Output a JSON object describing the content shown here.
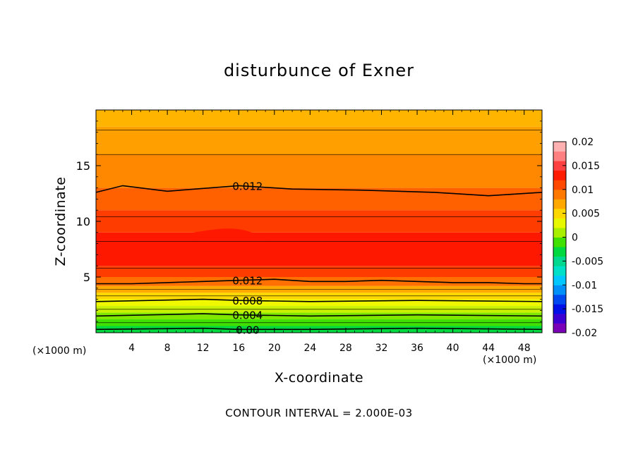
{
  "chart_data": {
    "type": "heatmap",
    "title": "disturbunce of Exner",
    "xlabel": "X-coordinate",
    "ylabel": "Z-coordinate",
    "x_unit": "(×1000 m)",
    "footer": "CONTOUR INTERVAL = 2.000E-03",
    "xlim": [
      0,
      50
    ],
    "ylim": [
      0,
      20
    ],
    "x_ticks": [
      4,
      8,
      12,
      16,
      20,
      24,
      28,
      32,
      36,
      40,
      44,
      48
    ],
    "y_ticks": [
      5,
      10,
      15
    ],
    "colorbar": {
      "min": -0.02,
      "max": 0.02,
      "ticks": [
        "0.02",
        "0.015",
        "0.01",
        "0.005",
        "0",
        "-0.005",
        "-0.01",
        "-0.015",
        "-0.02"
      ],
      "colors": [
        "#7a00b8",
        "#3c00d2",
        "#0010e6",
        "#0048f0",
        "#0090f8",
        "#00c8ff",
        "#00e0c8",
        "#00d890",
        "#00d840",
        "#40e000",
        "#a8f000",
        "#e8f800",
        "#ffd800",
        "#ffa800",
        "#ff7800",
        "#ff4800",
        "#ff1c00",
        "#ff4040",
        "#ff8080",
        "#ffb0b0"
      ]
    },
    "contour_labels": [
      {
        "text": "0.012",
        "x": 17.0,
        "z": 13.2
      },
      {
        "text": "0.012",
        "x": 17.0,
        "z": 4.7
      },
      {
        "text": "0.008",
        "x": 17.0,
        "z": 2.9
      },
      {
        "text": "0.004",
        "x": 17.0,
        "z": 1.6
      },
      {
        "text": "0.00",
        "x": 17.0,
        "z": 0.3
      }
    ],
    "series": [
      {
        "value": 0.012,
        "x": [
          0,
          3,
          8,
          16,
          22,
          30,
          38,
          44,
          50
        ],
        "z": [
          12.6,
          13.2,
          12.7,
          13.2,
          12.9,
          12.8,
          12.6,
          12.3,
          12.6
        ]
      },
      {
        "value": 0.012,
        "x": [
          0,
          4,
          8,
          12,
          16,
          20,
          24,
          28,
          32,
          36,
          40,
          44,
          48,
          50
        ],
        "z": [
          4.4,
          4.4,
          4.5,
          4.6,
          4.7,
          4.8,
          4.6,
          4.6,
          4.7,
          4.6,
          4.5,
          4.5,
          4.4,
          4.4
        ]
      },
      {
        "value": 0.008,
        "x": [
          0,
          12,
          16,
          24,
          36,
          50
        ],
        "z": [
          2.8,
          3.0,
          2.9,
          2.8,
          2.9,
          2.8
        ]
      },
      {
        "value": 0.004,
        "x": [
          0,
          12,
          16,
          24,
          36,
          50
        ],
        "z": [
          1.5,
          1.7,
          1.6,
          1.5,
          1.6,
          1.5
        ]
      },
      {
        "value": 0.0,
        "x": [
          0,
          12,
          16,
          24,
          36,
          50
        ],
        "z": [
          0.3,
          0.4,
          0.3,
          0.3,
          0.4,
          0.3
        ]
      }
    ]
  }
}
